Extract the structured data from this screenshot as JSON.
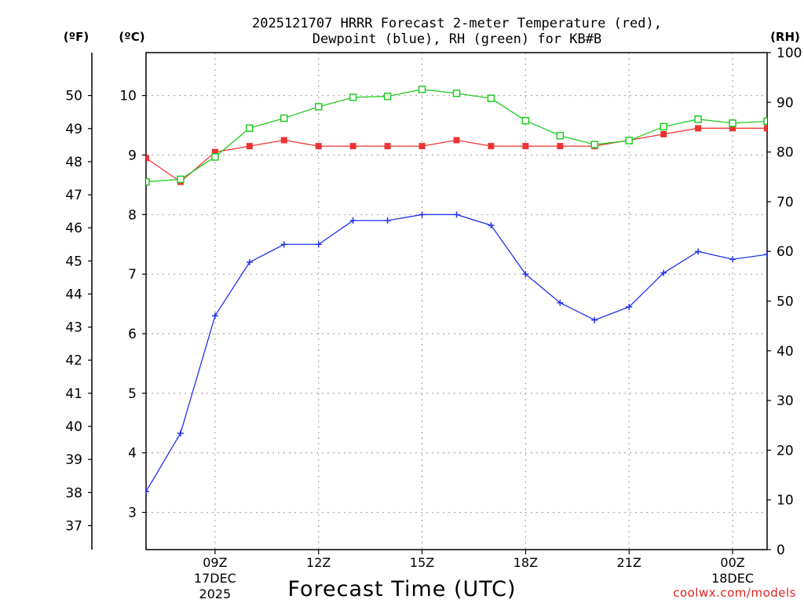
{
  "chart_data": {
    "type": "line",
    "title_line1": "2025121707 HRRR Forecast 2-meter Temperature (red),",
    "title_line2": "Dewpoint (blue), RH (green) for KB#B",
    "xlabel": "Forecast Time (UTC)",
    "credit": "coolwx.com/models",
    "left_axis_f_label": "(ºF)",
    "left_axis_c_label": "(ºC)",
    "right_axis_label": "(RH)",
    "hours": [
      7,
      8,
      9,
      10,
      11,
      12,
      13,
      14,
      15,
      16,
      17,
      18,
      19,
      20,
      21,
      22,
      23,
      24,
      25
    ],
    "series": [
      {
        "name": "Temperature",
        "unit": "C",
        "axis": "celsius",
        "color": "#ee3333",
        "marker": "filled-square",
        "values": [
          8.95,
          8.55,
          9.05,
          9.15,
          9.25,
          9.15,
          9.15,
          9.15,
          9.15,
          9.25,
          9.15,
          9.15,
          9.15,
          9.15,
          9.25,
          9.35,
          9.45,
          9.45,
          9.45
        ]
      },
      {
        "name": "Dewpoint",
        "unit": "C",
        "axis": "celsius",
        "color": "#2233ee",
        "marker": "plus",
        "values": [
          3.35,
          4.33,
          6.3,
          7.2,
          7.5,
          7.5,
          7.9,
          7.9,
          8.0,
          8.0,
          7.82,
          7.0,
          6.52,
          6.23,
          6.45,
          7.02,
          7.38,
          7.25,
          7.33
        ]
      },
      {
        "name": "RH",
        "unit": "%",
        "axis": "rh",
        "color": "#22cc22",
        "marker": "open-square",
        "values": [
          74,
          74.5,
          79,
          84.8,
          86.8,
          89.1,
          91,
          91.2,
          92.6,
          91.8,
          90.8,
          86.3,
          83.3,
          81.5,
          82.3,
          85.1,
          86.6,
          85.8,
          86.2
        ]
      }
    ],
    "x_ticks": [
      {
        "hour": 9,
        "label": "09Z",
        "sub1": "17DEC",
        "sub2": "2025"
      },
      {
        "hour": 12,
        "label": "12Z",
        "sub1": "",
        "sub2": ""
      },
      {
        "hour": 15,
        "label": "15Z",
        "sub1": "",
        "sub2": ""
      },
      {
        "hour": 18,
        "label": "18Z",
        "sub1": "",
        "sub2": ""
      },
      {
        "hour": 21,
        "label": "21Z",
        "sub1": "",
        "sub2": ""
      },
      {
        "hour": 24,
        "label": "00Z",
        "sub1": "18DEC",
        "sub2": ""
      }
    ],
    "xlim": [
      7,
      25
    ],
    "celsius_ticks": [
      3,
      4,
      5,
      6,
      7,
      8,
      9,
      10
    ],
    "celsius_range": [
      2.375,
      10.72
    ],
    "fahrenheit_ticks": [
      37,
      38,
      39,
      40,
      41,
      42,
      43,
      44,
      45,
      46,
      47,
      48,
      49,
      50
    ],
    "rh_ticks": [
      0,
      10,
      20,
      30,
      40,
      50,
      60,
      70,
      80,
      90,
      100
    ],
    "rh_range": [
      0,
      100
    ]
  }
}
